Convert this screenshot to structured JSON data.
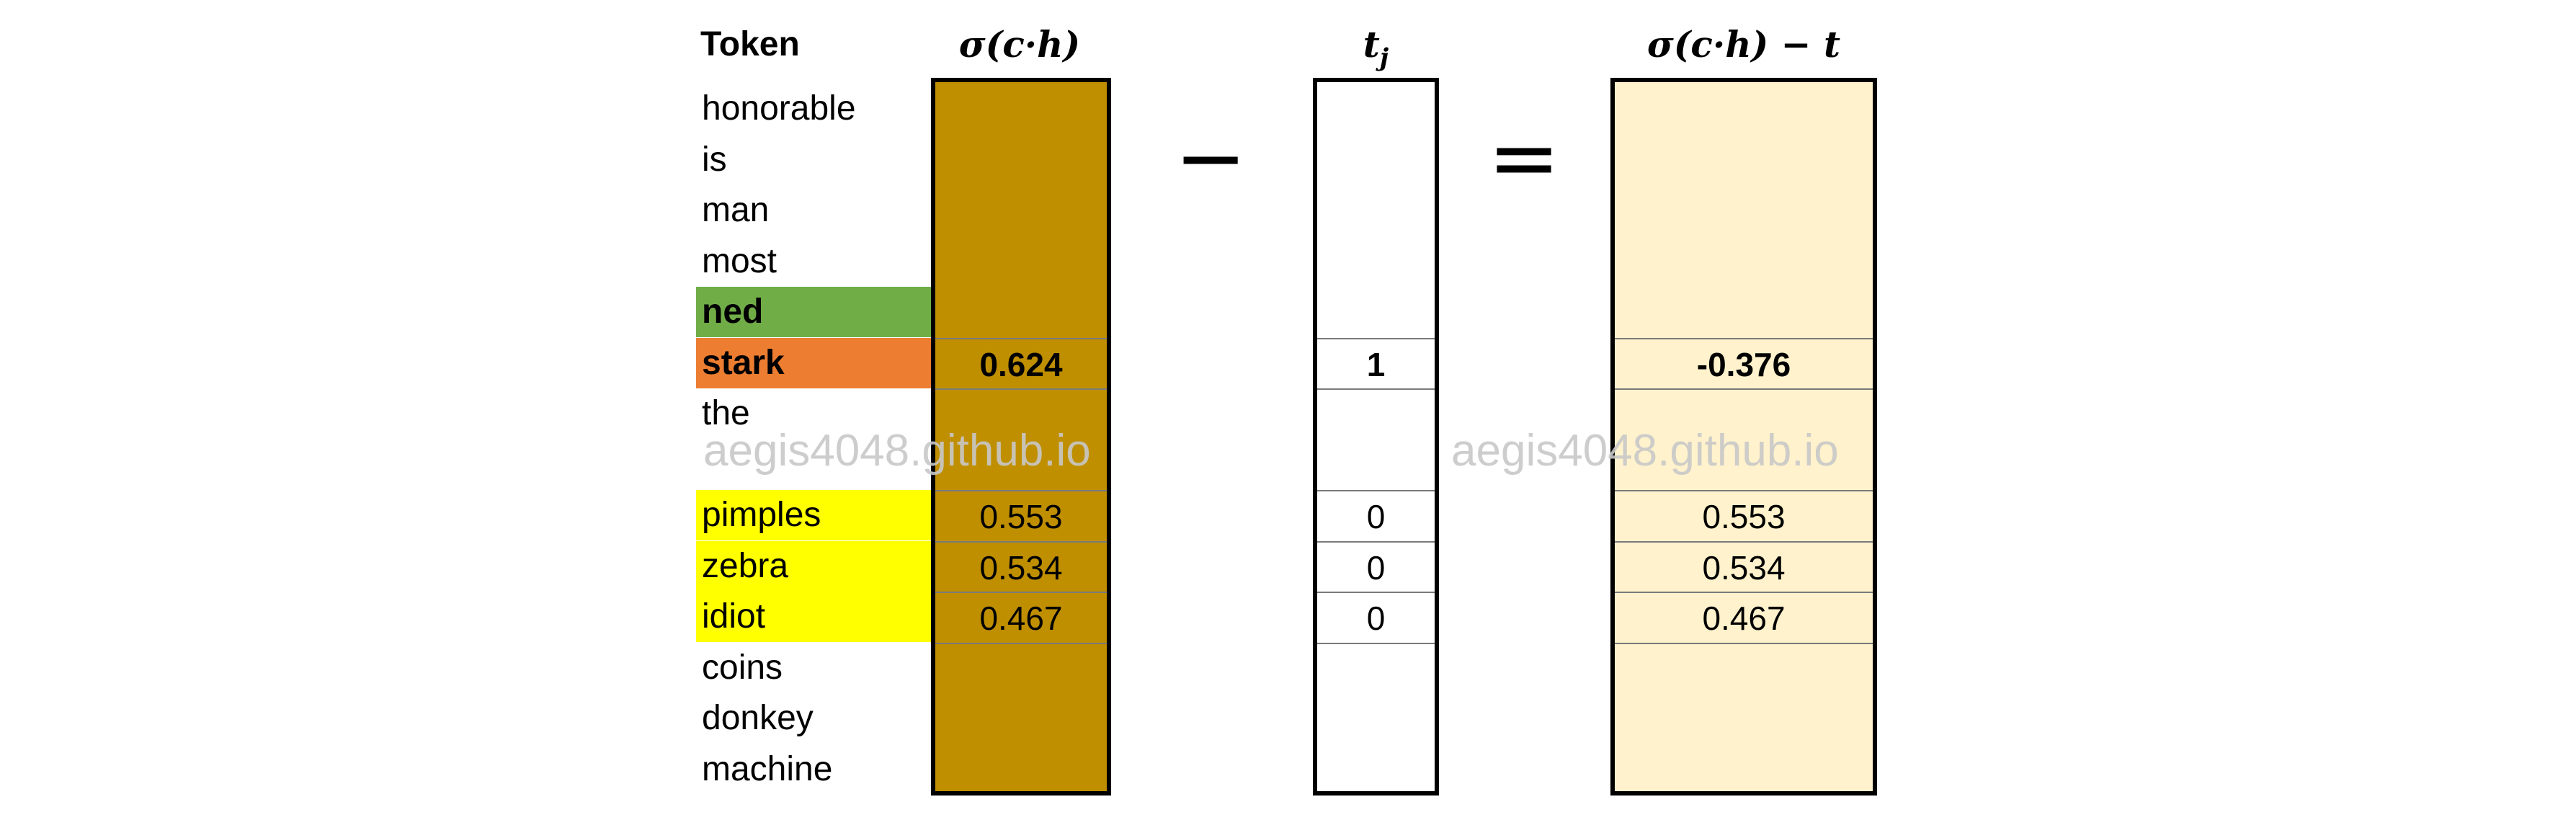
{
  "headers": {
    "token": "Token",
    "sigmoid": "σ(c·h)",
    "target": "t",
    "difference": "σ(c·h) − t",
    "subscript": "j"
  },
  "operators": {
    "minus": "−",
    "equals": "="
  },
  "tokens": [
    {
      "label": "honorable",
      "highlight": "none"
    },
    {
      "label": "is",
      "highlight": "none"
    },
    {
      "label": "man",
      "highlight": "none"
    },
    {
      "label": "most",
      "highlight": "none"
    },
    {
      "label": "ned",
      "highlight": "context"
    },
    {
      "label": "stark",
      "highlight": "positive"
    },
    {
      "label": "the",
      "highlight": "none"
    },
    {
      "label": "",
      "highlight": "none"
    },
    {
      "label": "pimples",
      "highlight": "negative"
    },
    {
      "label": "zebra",
      "highlight": "negative"
    },
    {
      "label": "idiot",
      "highlight": "negative"
    },
    {
      "label": "coins",
      "highlight": "none"
    },
    {
      "label": "donkey",
      "highlight": "none"
    },
    {
      "label": "machine",
      "highlight": "none"
    }
  ],
  "values": {
    "stark": {
      "sigmoid": "0.624",
      "target": "1",
      "difference": "-0.376"
    },
    "pimples": {
      "sigmoid": "0.553",
      "target": "0",
      "difference": "0.553"
    },
    "zebra": {
      "sigmoid": "0.534",
      "target": "0",
      "difference": "0.534"
    },
    "idiot": {
      "sigmoid": "0.467",
      "target": "0",
      "difference": "0.467"
    }
  },
  "colors": {
    "context": "#70ad47",
    "positive": "#ed7d31",
    "negative": "#ffff00",
    "sigmoid_column": "#bf8f00",
    "difference_column": "#fff2cc"
  },
  "watermark": {
    "left": "aegis4048.github.io",
    "right": "aegis4048.github.io"
  }
}
